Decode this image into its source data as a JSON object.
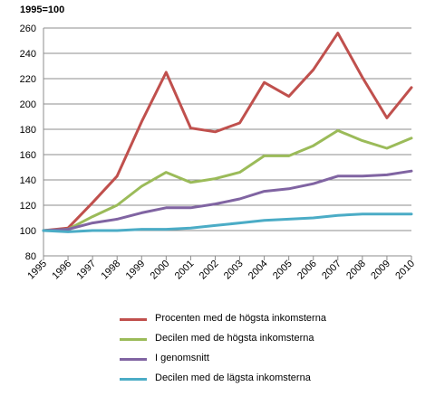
{
  "chart_data": {
    "type": "line",
    "unit_label": "1995=100",
    "x": [
      "1995",
      "1996",
      "1997",
      "1998",
      "1999",
      "2000",
      "2001",
      "2002",
      "2003",
      "2004",
      "2005",
      "2006",
      "2007",
      "2008",
      "2009",
      "2010"
    ],
    "ylim": [
      80,
      260
    ],
    "yticks": [
      80,
      100,
      120,
      140,
      160,
      180,
      200,
      220,
      240,
      260
    ],
    "grid": "horizontal",
    "legend_position": "bottom",
    "series": [
      {
        "name": "Procenten med de högsta inkomsterna",
        "color": "#c0504d",
        "values": [
          100,
          102,
          122,
          143,
          186,
          225,
          181,
          178,
          185,
          217,
          206,
          227,
          256,
          221,
          189,
          213
        ]
      },
      {
        "name": "Decilen med de högsta inkomsterna",
        "color": "#9bbb59",
        "values": [
          100,
          101,
          111,
          120,
          135,
          146,
          138,
          141,
          146,
          159,
          159,
          167,
          179,
          171,
          165,
          173
        ]
      },
      {
        "name": "I genomsnitt",
        "color": "#8064a2",
        "values": [
          100,
          101,
          106,
          109,
          114,
          118,
          118,
          121,
          125,
          131,
          133,
          137,
          143,
          143,
          144,
          147
        ]
      },
      {
        "name": "Decilen med de lägsta inkomsterna",
        "color": "#4bacc6",
        "values": [
          100,
          99,
          100,
          100,
          101,
          101,
          102,
          104,
          106,
          108,
          109,
          110,
          112,
          113,
          113,
          113
        ]
      }
    ]
  }
}
